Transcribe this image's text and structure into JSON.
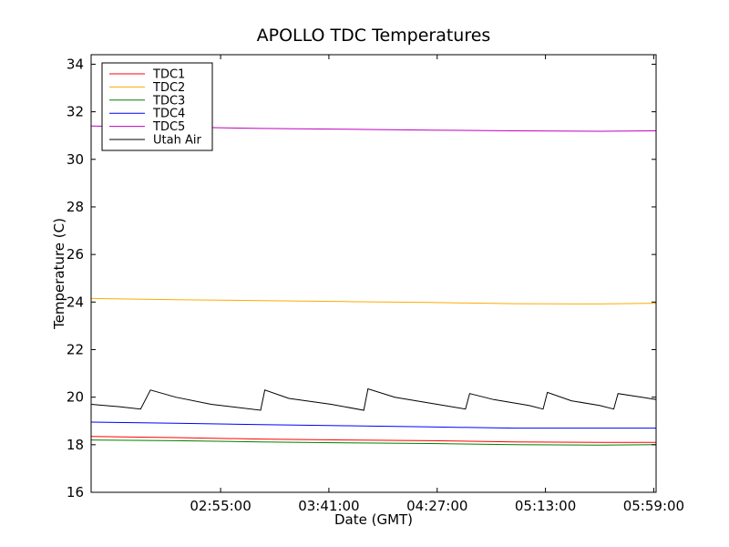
{
  "chart_data": {
    "type": "line",
    "title": "APOLLO TDC Temperatures",
    "xlabel": "Date (GMT)",
    "ylabel": "Temperature (C)",
    "xlim": [
      2.0,
      6.0
    ],
    "ylim": [
      16,
      34.4
    ],
    "x_ticks": [
      {
        "value": 2.9167,
        "label": "02:55:00"
      },
      {
        "value": 3.6833,
        "label": "03:41:00"
      },
      {
        "value": 4.45,
        "label": "04:27:00"
      },
      {
        "value": 5.2167,
        "label": "05:13:00"
      },
      {
        "value": 5.9833,
        "label": "05:59:00"
      }
    ],
    "y_ticks": [
      16,
      18,
      20,
      22,
      24,
      26,
      28,
      30,
      32,
      34
    ],
    "legend_position": "top-left",
    "series": [
      {
        "name": "TDC1",
        "color": "#ff0000",
        "points": [
          [
            2.0,
            18.35
          ],
          [
            2.6,
            18.3
          ],
          [
            3.2,
            18.24
          ],
          [
            3.8,
            18.2
          ],
          [
            4.4,
            18.17
          ],
          [
            5.0,
            18.12
          ],
          [
            5.6,
            18.1
          ],
          [
            6.0,
            18.1
          ]
        ]
      },
      {
        "name": "TDC2",
        "color": "#ffaa00",
        "points": [
          [
            2.0,
            24.15
          ],
          [
            2.6,
            24.1
          ],
          [
            3.2,
            24.06
          ],
          [
            3.8,
            24.02
          ],
          [
            4.4,
            23.98
          ],
          [
            5.0,
            23.93
          ],
          [
            5.6,
            23.92
          ],
          [
            6.0,
            23.95
          ]
        ]
      },
      {
        "name": "TDC3",
        "color": "#008000",
        "points": [
          [
            2.0,
            18.2
          ],
          [
            2.6,
            18.17
          ],
          [
            3.2,
            18.12
          ],
          [
            3.8,
            18.08
          ],
          [
            4.4,
            18.05
          ],
          [
            5.0,
            18.0
          ],
          [
            5.6,
            17.98
          ],
          [
            6.0,
            18.0
          ]
        ]
      },
      {
        "name": "TDC4",
        "color": "#0000ff",
        "points": [
          [
            2.0,
            18.95
          ],
          [
            2.6,
            18.9
          ],
          [
            3.2,
            18.85
          ],
          [
            3.8,
            18.8
          ],
          [
            4.4,
            18.75
          ],
          [
            5.0,
            18.7
          ],
          [
            5.6,
            18.7
          ],
          [
            6.0,
            18.7
          ]
        ]
      },
      {
        "name": "TDC5",
        "color": "#bf00bf",
        "points": [
          [
            2.0,
            31.4
          ],
          [
            2.6,
            31.36
          ],
          [
            3.2,
            31.3
          ],
          [
            3.8,
            31.27
          ],
          [
            4.4,
            31.23
          ],
          [
            5.0,
            31.2
          ],
          [
            5.6,
            31.18
          ],
          [
            6.0,
            31.2
          ]
        ]
      },
      {
        "name": "Utah Air",
        "color": "#000000",
        "points": [
          [
            2.0,
            19.7
          ],
          [
            2.2,
            19.6
          ],
          [
            2.35,
            19.5
          ],
          [
            2.42,
            20.3
          ],
          [
            2.6,
            20.0
          ],
          [
            2.85,
            19.7
          ],
          [
            3.2,
            19.45
          ],
          [
            3.23,
            20.3
          ],
          [
            3.4,
            19.95
          ],
          [
            3.7,
            19.7
          ],
          [
            3.93,
            19.45
          ],
          [
            3.96,
            20.35
          ],
          [
            4.15,
            20.0
          ],
          [
            4.45,
            19.7
          ],
          [
            4.65,
            19.5
          ],
          [
            4.68,
            20.15
          ],
          [
            4.85,
            19.9
          ],
          [
            5.1,
            19.65
          ],
          [
            5.2,
            19.5
          ],
          [
            5.23,
            20.2
          ],
          [
            5.4,
            19.85
          ],
          [
            5.6,
            19.65
          ],
          [
            5.7,
            19.5
          ],
          [
            5.73,
            20.15
          ],
          [
            5.9,
            20.0
          ],
          [
            6.0,
            19.9
          ]
        ]
      }
    ]
  }
}
